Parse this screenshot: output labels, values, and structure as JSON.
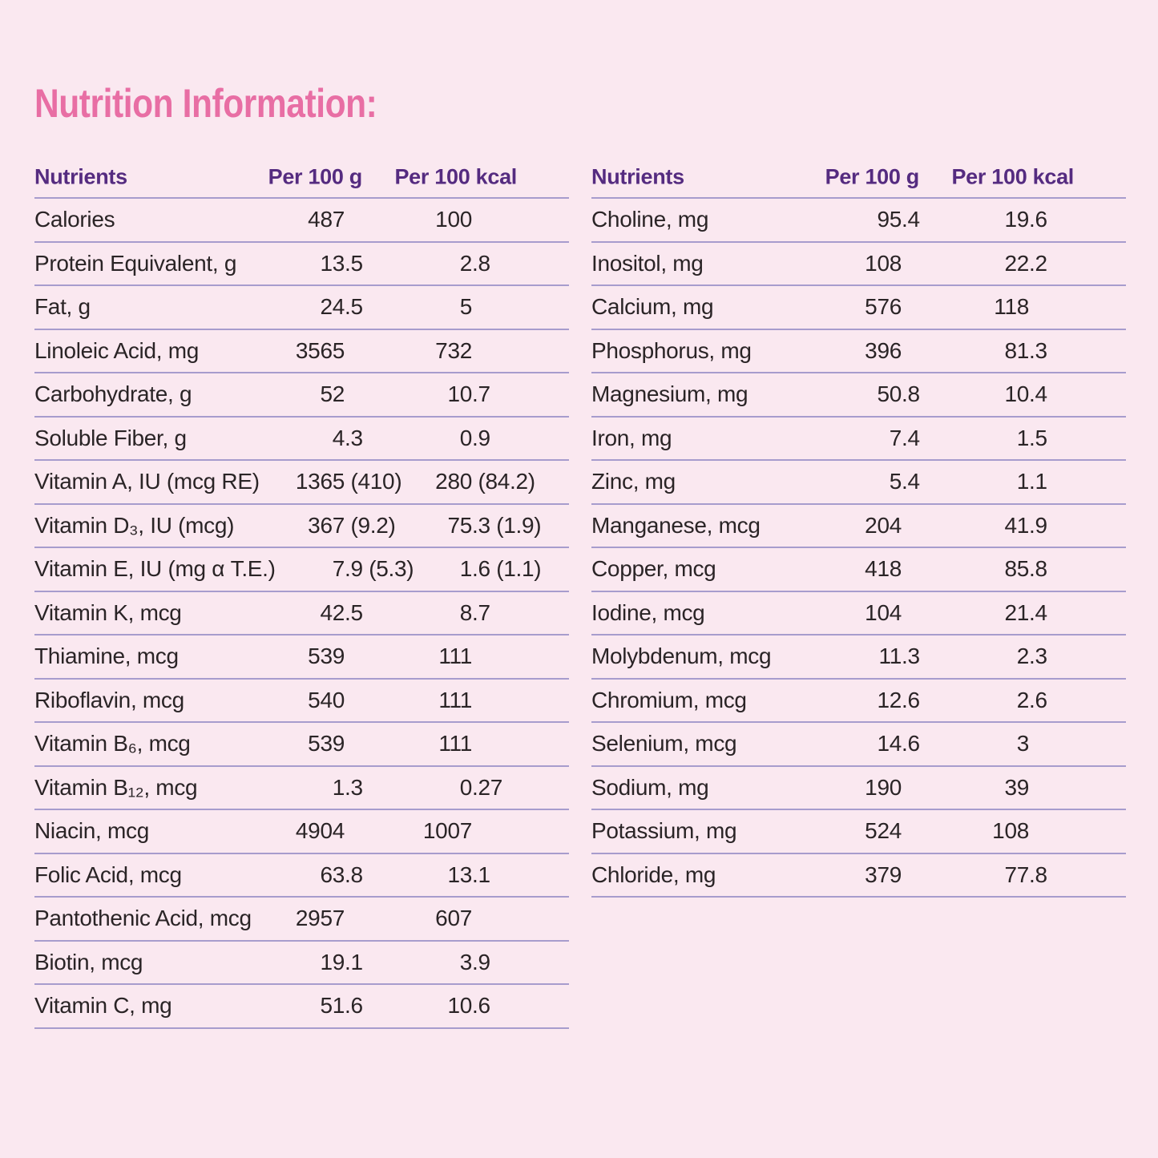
{
  "title": "Nutrition Information:",
  "colors": {
    "background": "#fae8f0",
    "title": "#e86ea4",
    "header": "#552b80",
    "body_text": "#2a2426",
    "divider": "#a79ccd"
  },
  "table_headers": {
    "nutrients": "Nutrients",
    "per_100_g": "Per 100 g",
    "per_100_kcal": "Per 100 kcal"
  },
  "left_table": {
    "rows": [
      {
        "nutrient": "Calories",
        "per_100_g": "487",
        "per_100_kcal": "100"
      },
      {
        "nutrient": "Protein Equivalent, g",
        "per_100_g": "13.5",
        "per_100_kcal": "2.8"
      },
      {
        "nutrient": "Fat, g",
        "per_100_g": "24.5",
        "per_100_kcal": "5"
      },
      {
        "nutrient": "Linoleic Acid, mg",
        "per_100_g": "3565",
        "per_100_kcal": "732"
      },
      {
        "nutrient": "Carbohydrate, g",
        "per_100_g": "52",
        "per_100_kcal": "10.7"
      },
      {
        "nutrient": "Soluble Fiber, g",
        "per_100_g": "4.3",
        "per_100_kcal": "0.9"
      },
      {
        "nutrient": "Vitamin A, IU (mcg RE)",
        "per_100_g": "1365 (410)",
        "per_100_kcal": "280 (84.2)"
      },
      {
        "nutrient": "Vitamin D₃, IU (mcg)",
        "per_100_g": "367 (9.2)",
        "per_100_kcal": "75.3 (1.9)"
      },
      {
        "nutrient": "Vitamin E, IU (mg α T.E.)",
        "per_100_g": "7.9 (5.3)",
        "per_100_kcal": "1.6 (1.1)"
      },
      {
        "nutrient": "Vitamin K, mcg",
        "per_100_g": "42.5",
        "per_100_kcal": "8.7"
      },
      {
        "nutrient": "Thiamine, mcg",
        "per_100_g": "539",
        "per_100_kcal": "111"
      },
      {
        "nutrient": "Riboflavin, mcg",
        "per_100_g": "540",
        "per_100_kcal": "111"
      },
      {
        "nutrient": "Vitamin B₆, mcg",
        "per_100_g": "539",
        "per_100_kcal": "111"
      },
      {
        "nutrient": "Vitamin B₁₂, mcg",
        "per_100_g": "1.3",
        "per_100_kcal": "0.27"
      },
      {
        "nutrient": "Niacin, mcg",
        "per_100_g": "4904",
        "per_100_kcal": "1007"
      },
      {
        "nutrient": "Folic Acid, mcg",
        "per_100_g": "63.8",
        "per_100_kcal": "13.1"
      },
      {
        "nutrient": "Pantothenic Acid, mcg",
        "per_100_g": "2957",
        "per_100_kcal": "607"
      },
      {
        "nutrient": "Biotin, mcg",
        "per_100_g": "19.1",
        "per_100_kcal": "3.9"
      },
      {
        "nutrient": "Vitamin C, mg",
        "per_100_g": "51.6",
        "per_100_kcal": "10.6"
      }
    ]
  },
  "right_table": {
    "rows": [
      {
        "nutrient": "Choline, mg",
        "per_100_g": "95.4",
        "per_100_kcal": "19.6"
      },
      {
        "nutrient": "Inositol, mg",
        "per_100_g": "108",
        "per_100_kcal": "22.2"
      },
      {
        "nutrient": "Calcium, mg",
        "per_100_g": "576",
        "per_100_kcal": "118"
      },
      {
        "nutrient": "Phosphorus, mg",
        "per_100_g": "396",
        "per_100_kcal": "81.3"
      },
      {
        "nutrient": "Magnesium, mg",
        "per_100_g": "50.8",
        "per_100_kcal": "10.4"
      },
      {
        "nutrient": "Iron, mg",
        "per_100_g": "7.4",
        "per_100_kcal": "1.5"
      },
      {
        "nutrient": "Zinc, mg",
        "per_100_g": "5.4",
        "per_100_kcal": "1.1"
      },
      {
        "nutrient": "Manganese, mcg",
        "per_100_g": "204",
        "per_100_kcal": "41.9"
      },
      {
        "nutrient": "Copper, mcg",
        "per_100_g": "418",
        "per_100_kcal": "85.8"
      },
      {
        "nutrient": "Iodine, mcg",
        "per_100_g": "104",
        "per_100_kcal": "21.4"
      },
      {
        "nutrient": "Molybdenum, mcg",
        "per_100_g": "11.3",
        "per_100_kcal": "2.3"
      },
      {
        "nutrient": "Chromium, mcg",
        "per_100_g": "12.6",
        "per_100_kcal": "2.6"
      },
      {
        "nutrient": "Selenium, mcg",
        "per_100_g": "14.6",
        "per_100_kcal": "3"
      },
      {
        "nutrient": "Sodium, mg",
        "per_100_g": "190",
        "per_100_kcal": "39"
      },
      {
        "nutrient": "Potassium, mg",
        "per_100_g": "524",
        "per_100_kcal": "108"
      },
      {
        "nutrient": "Chloride, mg",
        "per_100_g": "379",
        "per_100_kcal": "77.8"
      }
    ]
  }
}
